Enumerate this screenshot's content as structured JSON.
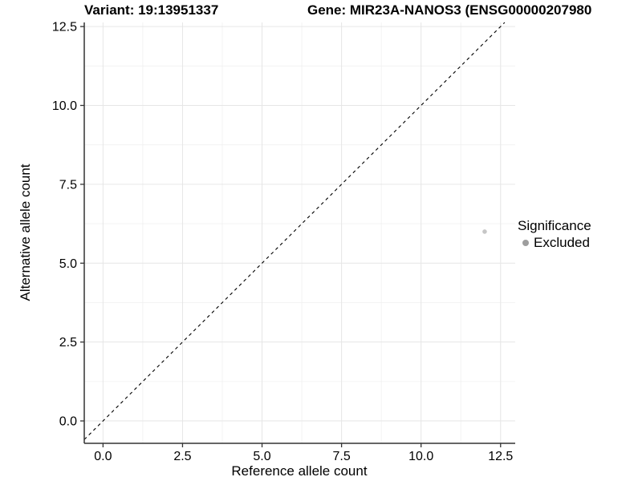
{
  "header": {
    "variant_title": "Variant: 19:13951337",
    "gene_title": "Gene: MIR23A-NANOS3 (ENSG00000207980"
  },
  "chart_data": {
    "type": "scatter",
    "xlabel": "Reference allele count",
    "ylabel": "Alternative allele count",
    "xlim": [
      -0.59,
      12.96
    ],
    "ylim": [
      -0.71,
      12.63
    ],
    "x_ticks": [
      0.0,
      2.5,
      5.0,
      7.5,
      10.0,
      12.5
    ],
    "y_ticks": [
      0.0,
      2.5,
      5.0,
      7.5,
      10.0,
      12.5
    ],
    "x_tick_labels": [
      "0.0",
      "2.5",
      "5.0",
      "7.5",
      "10.0",
      "12.5"
    ],
    "y_tick_labels": [
      "0.0",
      "2.5",
      "5.0",
      "7.5",
      "10.0",
      "12.5"
    ],
    "minor_ticks": [
      1.25,
      3.75,
      6.25,
      8.75,
      11.25
    ],
    "grid": true,
    "series": [
      {
        "name": "Excluded",
        "point_color": "#c6c6c6",
        "points": [
          {
            "x": 12,
            "y": 6
          }
        ]
      }
    ],
    "reference_line": {
      "slope": 1,
      "intercept": 0,
      "style": "dashed",
      "color": "#000000"
    },
    "legend": {
      "title": "Significance",
      "position": "right",
      "items": [
        {
          "label": "Excluded",
          "key_color": "#9e9e9e"
        }
      ]
    }
  },
  "colors": {
    "background": "#ffffff",
    "grid_major": "#e6e6e6",
    "grid_minor": "#f0f0f0",
    "axis_line": "#333333",
    "tick_mark": "#333333",
    "text": "#000000"
  }
}
